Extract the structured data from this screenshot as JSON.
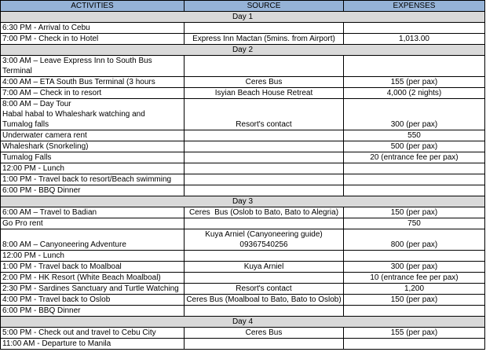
{
  "table": {
    "headers": [
      "ACTIVITIES",
      "SOURCE",
      "EXPENSES"
    ],
    "days": [
      {
        "label": "Day 1",
        "rows": [
          {
            "activity": "6:30 PM - Arrival to Cebu"
          },
          {
            "activity": "7:00 PM - Check in to Hotel",
            "source": "Express Inn Mactan (5mins. from Airport)",
            "expense": "1,013.00"
          }
        ]
      },
      {
        "label": "Day 2",
        "rows": [
          {
            "activity": "3:00 AM – Leave Express Inn to South Bus\nTerminal"
          },
          {
            "activity": "4:00 AM – ETA South Bus Terminal (3 hours",
            "source": "Ceres Bus",
            "expense": "155 (per pax)"
          },
          {
            "activity": "7:00 AM – Check in to resort",
            "source": "Isyian Beach House Retreat",
            "expense": "4,000 (2 nights)"
          },
          {
            "activity": "8:00 AM – Day Tour\nHabal habal to Whaleshark watching and\nTumalog falls",
            "source": "Resort's contact",
            "expense": "300 (per pax)"
          },
          {
            "activity": "Underwater camera rent",
            "expense": "550"
          },
          {
            "activity": "Whaleshark (Snorkeling)",
            "expense": "500 (per pax)"
          },
          {
            "activity": "Tumalog Falls",
            "expense": "20 (entrance fee per pax)"
          },
          {
            "activity": "12:00 PM - Lunch"
          },
          {
            "activity": "1:00 PM - Travel back to resort/Beach swimming"
          },
          {
            "activity": "6:00 PM - BBQ Dinner"
          }
        ]
      },
      {
        "label": "Day 3",
        "rows": [
          {
            "activity": "6:00 AM – Travel to Badian",
            "source": "Ceres  Bus (Oslob to Bato, Bato to Alegria)",
            "expense": "150 (per pax)"
          },
          {
            "activity": "Go Pro rent",
            "expense": "750"
          },
          {
            "activity": "8:00 AM – Canyoneering Adventure",
            "source": "Kuya Arniel (Canyoneering guide)\n09367540256",
            "expense": "800 (per pax)"
          },
          {
            "activity": "12:00 PM - Lunch"
          },
          {
            "activity": "1:00 PM - Travel back to Moalboal",
            "source": "Kuya Arniel",
            "expense": "300 (per pax)"
          },
          {
            "activity": "2:00 PM - HK Resort (White Beach Moalboal)",
            "expense": "10 (entrance fee per pax)"
          },
          {
            "activity": "2:30 PM - Sardines Sanctuary and Turtle Watching",
            "source": "Resort's contact",
            "expense": "1,200"
          },
          {
            "activity": "4:00 PM - Travel back to Oslob",
            "source": "Ceres Bus (Moalboal to Bato, Bato to Oslob)",
            "expense": "150 (per pax)"
          },
          {
            "activity": "6:00 PM - BBQ Dinner"
          }
        ]
      },
      {
        "label": "Day 4",
        "rows": [
          {
            "activity": "5:00 PM - Check out and travel to Cebu City",
            "source": "Ceres Bus",
            "expense": "155 (per pax)"
          },
          {
            "activity": "11:00 AM - Departure to Manila"
          }
        ]
      }
    ]
  }
}
